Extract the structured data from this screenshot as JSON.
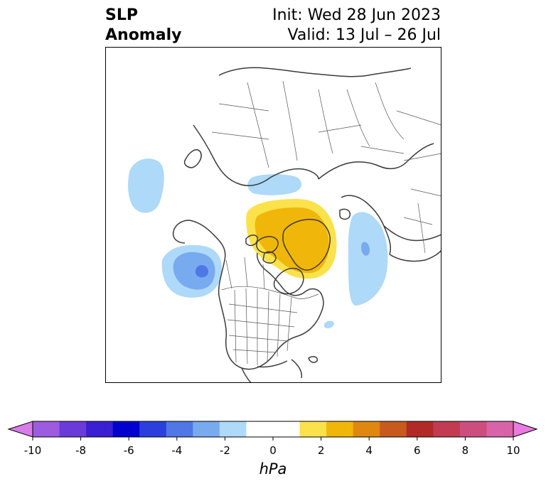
{
  "title": {
    "line1": "SLP",
    "line2": "Anomaly",
    "init": "Init: Wed 28 Jun 2023",
    "valid": "Valid: 13 Jul – 26 Jul"
  },
  "colorbar": {
    "unit": "hPa",
    "ticks": [
      "-10",
      "-8",
      "-6",
      "-4",
      "-2",
      "0",
      "2",
      "4",
      "6",
      "8",
      "10"
    ],
    "colors": [
      "#d87ce8",
      "#9d5be0",
      "#6a3bd8",
      "#3b1fd2",
      "#0000cf",
      "#2a3fdc",
      "#4f77e6",
      "#78aaf0",
      "#aed9f8",
      "#ffffff",
      "#ffffff",
      "#fbe24b",
      "#f1b60a",
      "#df8810",
      "#c75a1c",
      "#b12a26",
      "#c23b53",
      "#cc4e7e",
      "#d863a8",
      "#e87ce0"
    ]
  },
  "colors": {
    "light_blue": "#aed9f8",
    "mid_blue": "#78aaf0",
    "deep_blue": "#4f77e6",
    "yellow": "#fbe24b",
    "gold": "#f1b60a",
    "coast": "#3a3a3a"
  }
}
